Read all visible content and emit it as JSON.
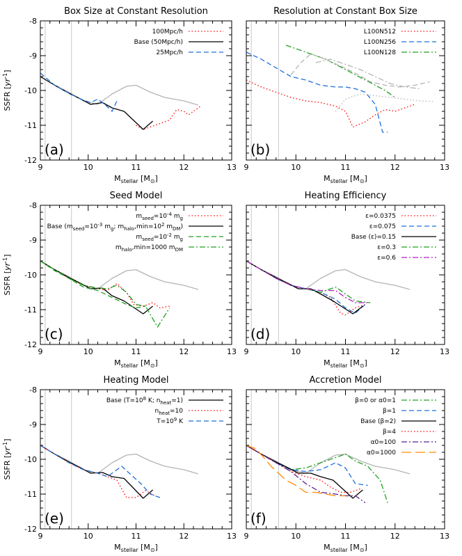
{
  "axes": {
    "xlabel": "M_stellar [M_sun]",
    "ylabel": "SSFR [yr^-1]",
    "xlim": [
      9,
      13
    ],
    "ylim": [
      -12,
      -8
    ],
    "xticks": [
      "9",
      "10",
      "11",
      "12",
      "13"
    ],
    "yticks": [
      "-12",
      "-11",
      "-10",
      "-9",
      "-8"
    ]
  },
  "chart_data": [
    {
      "type": "line",
      "panel": "(a)",
      "title": "Box Size at Constant Resolution",
      "reference_vlines": [
        9.1,
        9.65
      ],
      "series": [
        {
          "name": "grey reference",
          "legend": false,
          "color": "#b4b4b4",
          "dash": "solid",
          "x": [
            9.0,
            9.3,
            9.6,
            9.9,
            10.2,
            10.5,
            10.8,
            11.0,
            11.3,
            11.6,
            12.0,
            12.3
          ],
          "y": [
            -9.6,
            -9.85,
            -10.05,
            -10.3,
            -10.4,
            -10.1,
            -9.88,
            -9.85,
            -10.05,
            -10.2,
            -10.3,
            -10.42
          ]
        },
        {
          "name": "100Mpc/h",
          "color": "#ff0000",
          "dash": "dot",
          "x": [
            11.0,
            11.15,
            11.3,
            11.5,
            11.7,
            11.85,
            12.0,
            12.1,
            12.2,
            12.35
          ],
          "y": [
            -11.0,
            -11.12,
            -11.05,
            -10.95,
            -10.85,
            -10.55,
            -10.6,
            -10.7,
            -10.6,
            -10.45
          ]
        },
        {
          "name": "Base (50Mpc/h)",
          "color": "#000000",
          "dash": "solid",
          "x": [
            9.0,
            9.3,
            9.6,
            9.85,
            10.05,
            10.3,
            10.5,
            10.75,
            11.15,
            11.35
          ],
          "y": [
            -9.6,
            -9.85,
            -10.08,
            -10.25,
            -10.4,
            -10.35,
            -10.5,
            -10.6,
            -11.12,
            -10.88
          ]
        },
        {
          "name": "25Mpc/h",
          "color": "#1f6fd8",
          "dash": "dash",
          "x": [
            9.0,
            9.3,
            9.6,
            9.85,
            10.05,
            10.2,
            10.35,
            10.5,
            10.6
          ],
          "y": [
            -9.5,
            -9.85,
            -10.08,
            -10.25,
            -10.35,
            -10.25,
            -10.4,
            -10.6,
            -10.3
          ]
        }
      ]
    },
    {
      "type": "line",
      "panel": "(b)",
      "title": "Resolution at Constant Box Size",
      "reference_vlines": [
        9.1,
        9.65
      ],
      "series": [
        {
          "name": "L100N512",
          "color": "#ff0000",
          "dash": "dot",
          "x": [
            9.0,
            9.3,
            9.6,
            9.9,
            10.2,
            10.5,
            10.8,
            11.0,
            11.15,
            11.4,
            11.6,
            11.8,
            12.0,
            12.2,
            12.4
          ],
          "y": [
            -9.7,
            -9.9,
            -10.05,
            -10.2,
            -10.3,
            -10.35,
            -10.45,
            -10.6,
            -11.05,
            -10.9,
            -10.7,
            -10.55,
            -10.6,
            -10.5,
            -10.4
          ]
        },
        {
          "name": "L100N256",
          "color": "#1f6fd8",
          "dash": "dash",
          "x": [
            9.0,
            9.3,
            9.6,
            9.9,
            10.2,
            10.5,
            10.8,
            11.0,
            11.2,
            11.4,
            11.6,
            11.75,
            11.85
          ],
          "y": [
            -8.9,
            -9.1,
            -9.35,
            -9.6,
            -9.7,
            -9.85,
            -9.9,
            -9.9,
            -9.95,
            -10.05,
            -10.4,
            -11.2,
            -11.2
          ]
        },
        {
          "name": "L100N128",
          "color": "#22a022",
          "dash": "dashdot",
          "x": [
            9.8,
            10.0,
            10.3,
            10.6,
            10.8,
            11.0,
            11.2,
            11.4,
            11.6,
            11.8,
            12.0
          ],
          "y": [
            -8.7,
            -8.8,
            -8.95,
            -9.1,
            -9.25,
            -9.4,
            -9.55,
            -9.7,
            -9.85,
            -10.0,
            -10.2
          ]
        },
        {
          "name": "L100N256 (grey)",
          "legend": false,
          "color": "#b4b4b4",
          "dash": "dash",
          "x": [
            9.9,
            10.1,
            10.3,
            10.6,
            10.9,
            11.2,
            11.5,
            11.8,
            12.1,
            12.4,
            12.7
          ],
          "y": [
            -9.55,
            -9.2,
            -8.95,
            -9.1,
            -9.3,
            -9.5,
            -9.75,
            -9.85,
            -9.9,
            -9.85,
            -9.75
          ]
        },
        {
          "name": "L100N512 (grey)",
          "legend": false,
          "color": "#b4b4b4",
          "dash": "dot",
          "x": [
            10.8,
            11.0,
            11.3,
            11.6,
            11.9,
            12.2,
            12.5,
            12.8
          ],
          "y": [
            -10.6,
            -10.25,
            -10.1,
            -10.15,
            -10.2,
            -10.25,
            -10.3,
            -10.32
          ]
        },
        {
          "name": "L100N128 (grey)",
          "legend": false,
          "color": "#b4b4b4",
          "dash": "dashdot",
          "x": [
            10.4,
            10.7,
            11.0,
            11.3,
            11.6,
            11.9,
            12.2,
            12.5
          ],
          "y": [
            -9.2,
            -9.1,
            -9.25,
            -9.4,
            -9.6,
            -9.8,
            -9.9,
            -9.95
          ]
        }
      ]
    },
    {
      "type": "line",
      "panel": "(c)",
      "title": "Seed Model",
      "reference_vlines": [
        9.1,
        9.65
      ],
      "series": [
        {
          "name": "grey reference",
          "legend": false,
          "color": "#b4b4b4",
          "dash": "solid",
          "x": [
            9.0,
            9.3,
            9.6,
            9.9,
            10.2,
            10.5,
            10.8,
            11.0,
            11.3,
            11.6,
            12.0,
            12.3
          ],
          "y": [
            -9.6,
            -9.85,
            -10.05,
            -10.3,
            -10.4,
            -10.1,
            -9.88,
            -9.85,
            -10.05,
            -10.2,
            -10.3,
            -10.42
          ]
        },
        {
          "name": "m_seed=10^-4 m_g",
          "color": "#ff0000",
          "dash": "dot",
          "x": [
            9.0,
            9.3,
            9.6,
            9.9,
            10.2,
            10.4,
            10.6,
            10.8,
            10.95,
            11.15,
            11.35,
            11.5,
            11.7
          ],
          "y": [
            -9.6,
            -9.85,
            -10.1,
            -10.3,
            -10.4,
            -10.45,
            -10.25,
            -10.5,
            -10.85,
            -10.9,
            -10.8,
            -10.95,
            -10.9
          ]
        },
        {
          "name": "Base (m_seed=10^-3 m_g; m_halo,min=10^2 m_DM)",
          "color": "#000000",
          "dash": "solid",
          "x": [
            9.0,
            9.3,
            9.6,
            9.85,
            10.05,
            10.3,
            10.5,
            10.75,
            11.15,
            11.35
          ],
          "y": [
            -9.6,
            -9.85,
            -10.08,
            -10.25,
            -10.4,
            -10.38,
            -10.6,
            -10.75,
            -11.12,
            -10.9
          ]
        },
        {
          "name": "m_seed=10^-2 m_g",
          "color": "#22a022",
          "dash": "dash",
          "x": [
            9.0,
            9.3,
            9.6,
            9.9,
            10.2,
            10.5,
            10.8,
            11.0,
            11.2
          ],
          "y": [
            -9.6,
            -9.88,
            -10.1,
            -10.35,
            -10.45,
            -10.65,
            -10.85,
            -10.95,
            -10.9
          ]
        },
        {
          "name": "m_halo,min=1000 m_DM",
          "color": "#22a022",
          "dash": "dashdot",
          "x": [
            9.0,
            9.3,
            9.6,
            9.9,
            10.2,
            10.4,
            10.6,
            10.8,
            11.0,
            11.2,
            11.45,
            11.7
          ],
          "y": [
            -9.6,
            -9.85,
            -10.1,
            -10.3,
            -10.38,
            -10.4,
            -10.3,
            -10.5,
            -10.85,
            -10.9,
            -11.5,
            -10.95
          ]
        }
      ]
    },
    {
      "type": "line",
      "panel": "(d)",
      "title": "Heating Efficiency",
      "reference_vlines": [
        9.1,
        9.65
      ],
      "series": [
        {
          "name": "grey reference",
          "legend": false,
          "color": "#b4b4b4",
          "dash": "solid",
          "x": [
            9.0,
            9.3,
            9.6,
            9.9,
            10.2,
            10.5,
            10.8,
            11.0,
            11.3,
            11.6,
            12.0,
            12.3
          ],
          "y": [
            -9.6,
            -9.85,
            -10.05,
            -10.3,
            -10.4,
            -10.1,
            -9.88,
            -9.85,
            -10.05,
            -10.2,
            -10.3,
            -10.42
          ]
        },
        {
          "name": "ε=0.0375",
          "color": "#ff0000",
          "dash": "dot",
          "x": [
            9.0,
            9.3,
            9.6,
            9.9,
            10.2,
            10.5,
            10.7,
            10.9,
            11.0,
            11.2,
            11.4
          ],
          "y": [
            -9.6,
            -9.85,
            -10.1,
            -10.3,
            -10.4,
            -10.5,
            -10.65,
            -11.1,
            -11.15,
            -10.95,
            -10.85
          ]
        },
        {
          "name": "ε=0.075",
          "color": "#1f6fd8",
          "dash": "dash",
          "x": [
            9.0,
            9.3,
            9.6,
            9.9,
            10.2,
            10.5,
            10.8,
            11.0,
            11.2,
            11.4
          ],
          "y": [
            -9.6,
            -9.85,
            -10.1,
            -10.3,
            -10.4,
            -10.5,
            -10.7,
            -10.95,
            -11.1,
            -10.85
          ]
        },
        {
          "name": "Base (ε)=0.15",
          "color": "#000000",
          "dash": "solid",
          "x": [
            9.0,
            9.3,
            9.6,
            9.85,
            10.05,
            10.3,
            10.5,
            10.75,
            11.15,
            11.35
          ],
          "y": [
            -9.6,
            -9.85,
            -10.08,
            -10.25,
            -10.4,
            -10.4,
            -10.55,
            -10.75,
            -11.12,
            -10.9
          ]
        },
        {
          "name": "ε=0.3",
          "color": "#22a022",
          "dash": "dashdot",
          "x": [
            9.0,
            9.3,
            9.6,
            9.9,
            10.2,
            10.5,
            10.8,
            11.0,
            11.2,
            11.5
          ],
          "y": [
            -9.6,
            -9.85,
            -10.1,
            -10.3,
            -10.4,
            -10.5,
            -10.35,
            -10.55,
            -10.75,
            -10.8
          ]
        },
        {
          "name": "ε=0.6",
          "color": "#b020c0",
          "dash": "dashdot",
          "x": [
            9.0,
            9.3,
            9.6,
            9.9,
            10.2,
            10.5,
            10.8,
            11.0,
            11.2,
            11.45
          ],
          "y": [
            -9.6,
            -9.85,
            -10.1,
            -10.3,
            -10.4,
            -10.45,
            -10.45,
            -10.65,
            -10.8,
            -10.8
          ]
        }
      ]
    },
    {
      "type": "line",
      "panel": "(e)",
      "title": "Heating Model",
      "reference_vlines": [
        9.1,
        9.65
      ],
      "series": [
        {
          "name": "grey reference",
          "legend": false,
          "color": "#b4b4b4",
          "dash": "solid",
          "x": [
            9.0,
            9.3,
            9.6,
            9.9,
            10.2,
            10.5,
            10.8,
            11.0,
            11.3,
            11.6,
            12.0,
            12.3
          ],
          "y": [
            -9.6,
            -9.85,
            -10.05,
            -10.3,
            -10.4,
            -10.1,
            -9.88,
            -9.85,
            -10.05,
            -10.2,
            -10.3,
            -10.42
          ]
        },
        {
          "name": "Base (T=10^8 K; n_heat=1)",
          "color": "#000000",
          "dash": "solid",
          "x": [
            9.0,
            9.3,
            9.6,
            9.85,
            10.05,
            10.3,
            10.5,
            10.75,
            11.15,
            11.35
          ],
          "y": [
            -9.6,
            -9.85,
            -10.08,
            -10.25,
            -10.4,
            -10.38,
            -10.5,
            -10.55,
            -11.12,
            -10.88
          ]
        },
        {
          "name": "n_heat=10",
          "color": "#ff0000",
          "dash": "dot",
          "x": [
            9.0,
            9.3,
            9.6,
            9.9,
            10.2,
            10.4,
            10.6,
            10.8,
            11.0,
            11.2,
            11.4
          ],
          "y": [
            -9.6,
            -9.85,
            -10.1,
            -10.3,
            -10.4,
            -10.5,
            -10.6,
            -11.1,
            -11.1,
            -10.9,
            -11.05
          ]
        },
        {
          "name": "T=10^9 K",
          "color": "#1f6fd8",
          "dash": "dash",
          "x": [
            9.0,
            9.3,
            9.6,
            9.9,
            10.2,
            10.4,
            10.7,
            10.9,
            11.1,
            11.3,
            11.5
          ],
          "y": [
            -9.6,
            -9.85,
            -10.1,
            -10.3,
            -10.4,
            -10.5,
            -10.2,
            -10.45,
            -10.7,
            -11.0,
            -11.1
          ]
        }
      ]
    },
    {
      "type": "line",
      "panel": "(f)",
      "title": "Accretion Model",
      "reference_vlines": [
        9.1,
        9.65
      ],
      "series": [
        {
          "name": "grey reference",
          "legend": false,
          "color": "#b4b4b4",
          "dash": "solid",
          "x": [
            9.0,
            9.3,
            9.6,
            9.9,
            10.2,
            10.5,
            10.8,
            11.0,
            11.3,
            11.6,
            12.0,
            12.3
          ],
          "y": [
            -9.6,
            -9.85,
            -10.05,
            -10.3,
            -10.4,
            -10.1,
            -9.88,
            -9.85,
            -10.05,
            -10.2,
            -10.3,
            -10.42
          ]
        },
        {
          "name": "β=0 or α0=1",
          "color": "#22a022",
          "dash": "dashdot",
          "x": [
            9.0,
            9.3,
            9.6,
            9.9,
            10.2,
            10.5,
            10.8,
            11.0,
            11.2,
            11.45,
            11.7,
            11.85
          ],
          "y": [
            -9.6,
            -9.85,
            -10.1,
            -10.3,
            -10.25,
            -10.1,
            -9.95,
            -9.85,
            -10.05,
            -10.2,
            -10.6,
            -11.25
          ]
        },
        {
          "name": "β=1",
          "color": "#1f6fd8",
          "dash": "dash",
          "x": [
            9.0,
            9.3,
            9.6,
            9.9,
            10.2,
            10.5,
            10.8,
            11.0,
            11.2,
            11.45
          ],
          "y": [
            -9.6,
            -9.85,
            -10.1,
            -10.3,
            -10.35,
            -10.3,
            -10.1,
            -10.25,
            -10.7,
            -10.75
          ]
        },
        {
          "name": "Base (β=2)",
          "color": "#000000",
          "dash": "solid",
          "x": [
            9.0,
            9.3,
            9.6,
            9.85,
            10.05,
            10.3,
            10.5,
            10.75,
            11.15,
            11.35
          ],
          "y": [
            -9.6,
            -9.85,
            -10.08,
            -10.25,
            -10.4,
            -10.4,
            -10.5,
            -10.6,
            -11.12,
            -10.88
          ]
        },
        {
          "name": "β=4",
          "color": "#ff0000",
          "dash": "dot",
          "x": [
            9.0,
            9.3,
            9.6,
            9.9,
            10.2,
            10.5,
            10.7,
            10.9,
            11.1,
            11.3
          ],
          "y": [
            -9.6,
            -9.85,
            -10.1,
            -10.35,
            -10.5,
            -10.6,
            -10.8,
            -10.95,
            -10.95,
            -10.85
          ]
        },
        {
          "name": "α0=100",
          "color": "#5a2090",
          "dash": "dashdot",
          "x": [
            9.0,
            9.3,
            9.6,
            9.9,
            10.2,
            10.5,
            10.8,
            11.0,
            11.2,
            11.4
          ],
          "y": [
            -9.6,
            -9.85,
            -10.1,
            -10.35,
            -10.7,
            -10.95,
            -11.0,
            -11.05,
            -11.05,
            -11.25
          ]
        },
        {
          "name": "α0=1000",
          "color": "#ff8c00",
          "dash": "longdash",
          "x": [
            9.0,
            9.2,
            9.5,
            9.8,
            10.0,
            10.2,
            10.4,
            10.6,
            10.8,
            11.0
          ],
          "y": [
            -9.6,
            -9.7,
            -10.2,
            -10.6,
            -10.75,
            -10.95,
            -10.95,
            -11.0,
            -11.05,
            -11.05
          ]
        }
      ]
    }
  ]
}
